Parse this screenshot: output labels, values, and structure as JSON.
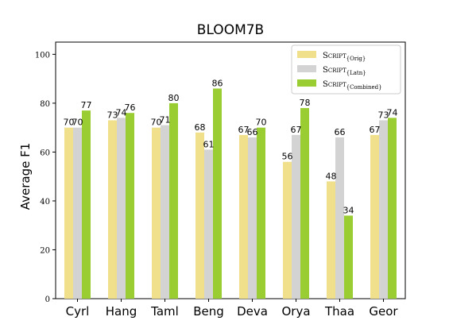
{
  "chart_data": {
    "type": "bar",
    "title": "BLOOM7B",
    "xlabel": "",
    "ylabel": "Average F1",
    "ylim": [
      0,
      105
    ],
    "yticks": [
      0,
      20,
      40,
      60,
      80,
      100
    ],
    "categories": [
      "Cyrl",
      "Hang",
      "Taml",
      "Beng",
      "Deva",
      "Orya",
      "Thaa",
      "Geor"
    ],
    "series": [
      {
        "name": "Script{Orig}",
        "legend_main": "Script",
        "legend_sub": "{Orig}",
        "color": "#f0e08c",
        "values": [
          70,
          73,
          70,
          68,
          67,
          56,
          48,
          67
        ]
      },
      {
        "name": "Script{Latn}",
        "legend_main": "Script",
        "legend_sub": "{Latn}",
        "color": "#d3d3d3",
        "values": [
          70,
          74,
          71,
          61,
          66,
          67,
          66,
          73
        ]
      },
      {
        "name": "Script{Combined}",
        "legend_main": "Script",
        "legend_sub": "{Combined}",
        "color": "#9acd32",
        "values": [
          77,
          76,
          80,
          86,
          70,
          78,
          34,
          74
        ]
      }
    ],
    "data_labels": true,
    "grid": false,
    "legend_position": "top-right"
  }
}
